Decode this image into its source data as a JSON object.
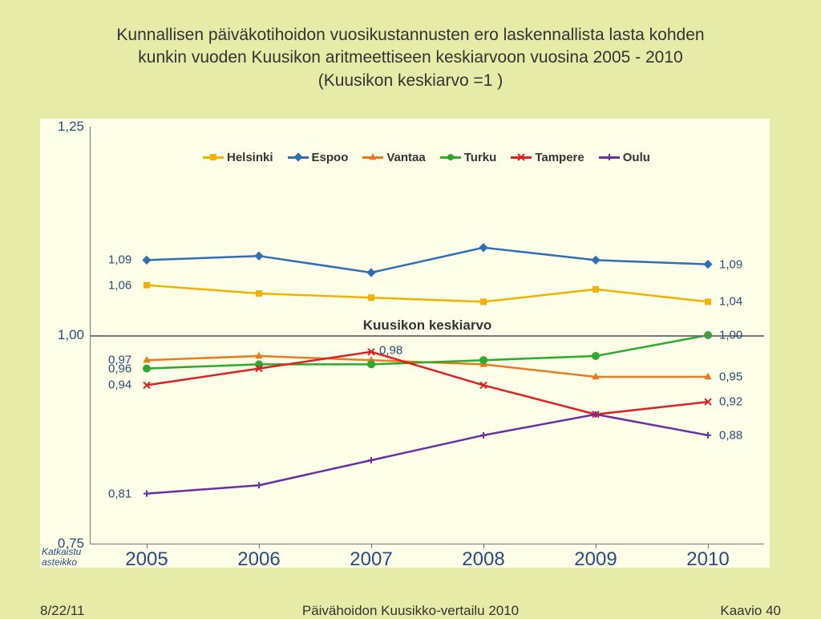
{
  "title_lines": [
    "Kunnallisen päiväkotihoidon vuosikustannusten ero laskennallista lasta kohden",
    "kunkin vuoden Kuusikon aritmeettiseen keskiarvoon vuosina 2005 - 2010",
    "(Kuusikon keskiarvo =1 )"
  ],
  "footer": {
    "left": "8/22/11",
    "center": "Päivähoidon Kuusikko-vertailu 2010",
    "right": "Kaavio 40"
  },
  "background_color": "#e6eba8",
  "plot_background": "#fdffe9",
  "chart": {
    "type": "line",
    "ylim": [
      0.75,
      1.25
    ],
    "yticks": [
      0.75,
      1.0,
      1.25
    ],
    "ytick_labels": [
      "0,75",
      "1,00",
      "1,25"
    ],
    "categories": [
      "2005",
      "2006",
      "2007",
      "2008",
      "2009",
      "2010"
    ],
    "reference": {
      "value": 1.0,
      "label": "Kuusikon keskiarvo"
    },
    "axis_note": "Katkaistu asteikko",
    "line_width": 2.5,
    "marker_size": 8,
    "label_fontsize": 15,
    "series": [
      {
        "name": "Helsinki",
        "color": "#f0b400",
        "marker": "square",
        "values": [
          1.06,
          1.05,
          1.045,
          1.04,
          1.055,
          1.04
        ],
        "start_label": "1,06",
        "end_label": "1,04"
      },
      {
        "name": "Espoo",
        "color": "#2f6db5",
        "marker": "diamond",
        "values": [
          1.09,
          1.095,
          1.075,
          1.105,
          1.09,
          1.085
        ],
        "start_label": "1,09",
        "end_label": "1,09"
      },
      {
        "name": "Vantaa",
        "color": "#e87b1e",
        "marker": "triangle",
        "values": [
          0.97,
          0.975,
          0.97,
          0.965,
          0.95,
          0.95
        ],
        "start_label": "0,97",
        "end_label": "0,95"
      },
      {
        "name": "Turku",
        "color": "#2baa2b",
        "marker": "circle",
        "values": [
          0.96,
          0.965,
          0.965,
          0.97,
          0.975,
          1.0
        ],
        "start_label": "0,96",
        "end_label": "1,00"
      },
      {
        "name": "Tampere",
        "color": "#e02020",
        "marker": "x",
        "values": [
          0.94,
          0.96,
          0.98,
          0.94,
          0.905,
          0.92
        ],
        "start_label": "0,94",
        "mid_label": {
          "x": 2,
          "text": "0,98"
        },
        "end_label": "0,92"
      },
      {
        "name": "Oulu",
        "color": "#6a2fa0",
        "marker": "plus",
        "values": [
          0.81,
          0.82,
          0.85,
          0.88,
          0.905,
          0.88
        ],
        "start_label": "0,81",
        "end_label": "0,88"
      }
    ]
  }
}
